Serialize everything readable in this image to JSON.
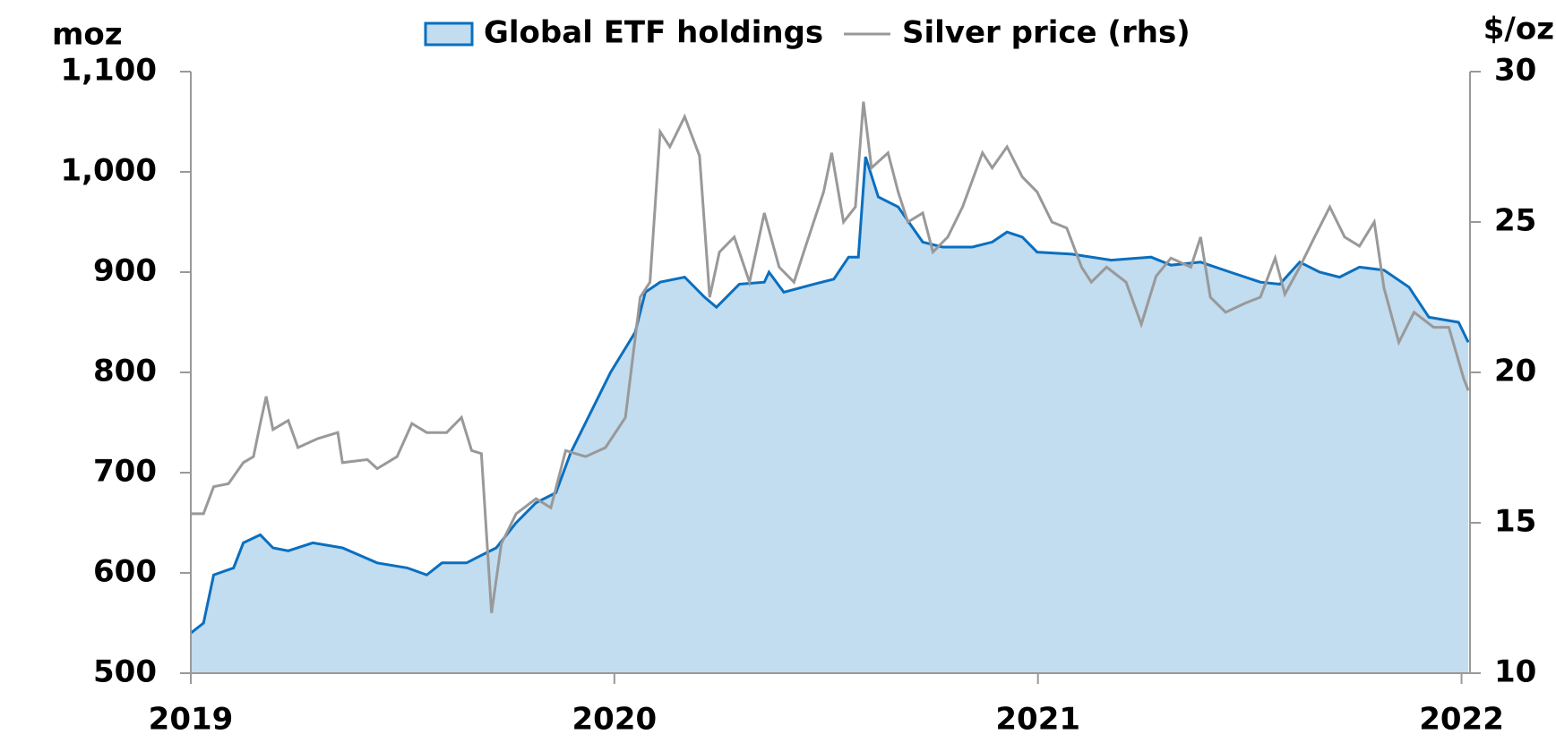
{
  "chart_data": {
    "type": "area_line",
    "y_label": "moz",
    "y2_label": "$/oz",
    "xlim": [
      2019,
      2022.02
    ],
    "xticks": [
      2019,
      2020,
      2021,
      2022
    ],
    "ylim": [
      500,
      1100
    ],
    "yticks": [
      500,
      600,
      700,
      800,
      900,
      {
        "value": 1000,
        "label": "1,000"
      },
      {
        "value": 1100,
        "label": "1,100"
      }
    ],
    "y2lim": [
      10,
      30
    ],
    "y2ticks": [
      10,
      15,
      20,
      25,
      30
    ],
    "series": [
      {
        "name": "Global ETF holdings",
        "type": "area",
        "color": "#0a6fbf",
        "fill": "#c2dcf0",
        "x": [
          2019.0,
          2019.03,
          2019.054,
          2019.101,
          2019.124,
          2019.164,
          2019.194,
          2019.23,
          2019.288,
          2019.358,
          2019.44,
          2019.511,
          2019.557,
          2019.593,
          2019.651,
          2019.674,
          2019.721,
          2019.768,
          2019.815,
          2019.862,
          2019.897,
          2019.944,
          2019.991,
          2020.049,
          2020.073,
          2020.108,
          2020.166,
          2020.213,
          2020.241,
          2020.295,
          2020.354,
          2020.365,
          2020.4,
          2020.471,
          2020.518,
          2020.553,
          2020.576,
          2020.593,
          2020.623,
          2020.67,
          2020.728,
          2020.775,
          2020.845,
          2020.892,
          2020.927,
          2020.963,
          2020.998,
          2021.08,
          2021.173,
          2021.267,
          2021.314,
          2021.384,
          2021.454,
          2021.525,
          2021.571,
          2021.618,
          2021.665,
          2021.712,
          2021.759,
          2021.817,
          2021.876,
          2021.923,
          2021.993,
          2022.016
        ],
        "values": [
          540,
          550,
          598,
          605,
          630,
          638,
          625,
          622,
          630,
          625,
          610,
          605,
          598,
          610,
          610,
          615,
          625,
          650,
          670,
          680,
          720,
          760,
          800,
          840,
          880,
          890,
          895,
          875,
          865,
          888,
          890,
          900,
          880,
          888,
          893,
          915,
          915,
          1015,
          975,
          965,
          930,
          925,
          925,
          930,
          940,
          935,
          920,
          918,
          912,
          915,
          907,
          910,
          900,
          890,
          888,
          910,
          900,
          895,
          905,
          902,
          885,
          855,
          850,
          830
        ]
      },
      {
        "name": "Silver price (rhs)",
        "type": "line",
        "axis": "y2",
        "color": "#999999",
        "x": [
          2019.0,
          2019.03,
          2019.054,
          2019.089,
          2019.124,
          2019.148,
          2019.164,
          2019.178,
          2019.194,
          2019.23,
          2019.253,
          2019.3,
          2019.347,
          2019.358,
          2019.417,
          2019.44,
          2019.487,
          2019.522,
          2019.557,
          2019.604,
          2019.639,
          2019.663,
          2019.686,
          2019.71,
          2019.733,
          2019.768,
          2019.815,
          2019.85,
          2019.885,
          2019.932,
          2019.979,
          2020.026,
          2020.061,
          2020.084,
          2020.108,
          2020.131,
          2020.166,
          2020.201,
          2020.225,
          2020.248,
          2020.283,
          2020.319,
          2020.354,
          2020.389,
          2020.424,
          2020.447,
          2020.494,
          2020.513,
          2020.541,
          2020.569,
          2020.588,
          2020.607,
          2020.646,
          2020.67,
          2020.693,
          2020.728,
          2020.752,
          2020.787,
          2020.822,
          2020.869,
          2020.892,
          2020.927,
          2020.963,
          2020.998,
          2021.033,
          2021.068,
          2021.103,
          2021.126,
          2021.162,
          2021.208,
          2021.244,
          2021.279,
          2021.314,
          2021.361,
          2021.384,
          2021.407,
          2021.443,
          2021.489,
          2021.525,
          2021.56,
          2021.583,
          2021.618,
          2021.653,
          2021.689,
          2021.724,
          2021.759,
          2021.794,
          2021.817,
          2021.852,
          2021.888,
          2021.934,
          2021.97,
          2022.005,
          2022.016
        ],
        "values": [
          15.3,
          15.3,
          16.2,
          16.3,
          17.0,
          17.2,
          18.3,
          19.2,
          18.1,
          18.4,
          17.5,
          17.8,
          18.0,
          17.0,
          17.1,
          16.8,
          17.2,
          18.3,
          18.0,
          18.0,
          18.5,
          17.4,
          17.3,
          12.0,
          14.3,
          15.3,
          15.8,
          15.5,
          17.4,
          17.2,
          17.5,
          18.5,
          22.5,
          23.0,
          28.0,
          27.5,
          28.5,
          27.2,
          22.5,
          24.0,
          24.5,
          23.0,
          25.3,
          23.5,
          23.0,
          24.0,
          26.0,
          27.3,
          25.0,
          25.5,
          29.0,
          26.8,
          27.3,
          26.0,
          25.0,
          25.3,
          24.0,
          24.5,
          25.5,
          27.3,
          26.8,
          27.5,
          26.5,
          26.0,
          25.0,
          24.8,
          23.5,
          23.0,
          23.5,
          23.0,
          21.6,
          23.2,
          23.8,
          23.5,
          24.5,
          22.5,
          22.0,
          22.3,
          22.5,
          23.8,
          22.6,
          23.5,
          24.5,
          25.5,
          24.5,
          24.2,
          25.0,
          22.8,
          21.0,
          22.0,
          21.5,
          21.5,
          19.8,
          19.4
        ]
      }
    ]
  }
}
